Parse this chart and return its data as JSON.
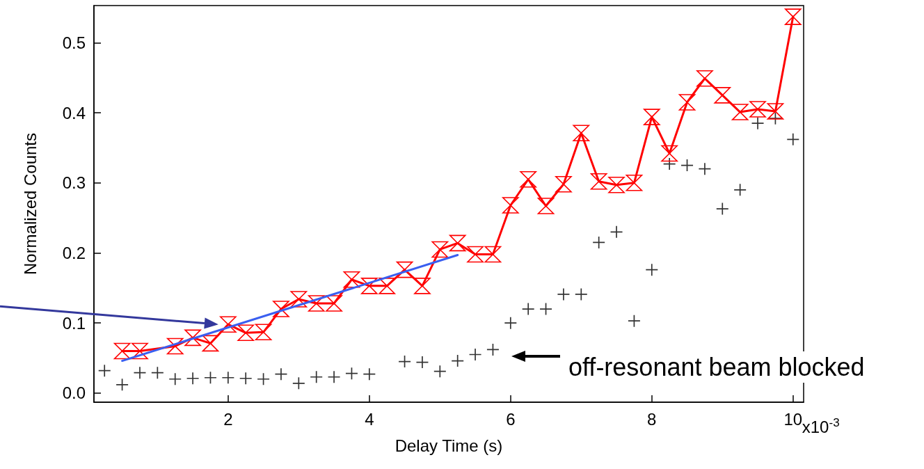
{
  "chart_data": {
    "type": "line",
    "xlabel": "Delay Time (s)",
    "ylabel": "Normalized Counts",
    "xlim": [
      0.1,
      10.15
    ],
    "ylim": [
      -0.013,
      0.553
    ],
    "xticks": [
      2,
      4,
      6,
      8,
      10
    ],
    "yticks": [
      {
        "value": 0,
        "label": "0.0"
      },
      {
        "value": 0.1,
        "label": "0.1"
      },
      {
        "value": 0.2,
        "label": "0.2"
      },
      {
        "value": 0.3,
        "label": "0.3"
      },
      {
        "value": 0.4,
        "label": "0.4"
      },
      {
        "value": 0.5,
        "label": "0.5"
      }
    ],
    "grid": false,
    "annotations": [
      "off-resonant beam blocked",
      "x10$^{-3}$"
    ],
    "series": [
      {
        "type": "scatter",
        "marker": "cross",
        "color": "#000000",
        "x": [
          0.25,
          0.5,
          0.75,
          1.0,
          1.25,
          1.5,
          1.75,
          2.0,
          2.25,
          2.5,
          2.75,
          3.0,
          3.25,
          3.5,
          3.75,
          4.0,
          4.5,
          4.75,
          5.0,
          5.25,
          5.5,
          5.75,
          6.0,
          6.25,
          6.5,
          6.75,
          7.0,
          7.25,
          7.5,
          7.75,
          8.0,
          8.25,
          8.5,
          8.75,
          9.0,
          9.25,
          9.5,
          9.75,
          10.0
        ],
        "values": [
          0.032,
          0.012,
          0.029,
          0.029,
          0.02,
          0.021,
          0.022,
          0.022,
          0.021,
          0.02,
          0.027,
          0.014,
          0.023,
          0.023,
          0.028,
          0.027,
          0.045,
          0.044,
          0.031,
          0.046,
          0.055,
          0.062,
          0.1,
          0.12,
          0.12,
          0.141,
          0.141,
          0.215,
          0.23,
          0.103,
          0.176,
          0.327,
          0.325,
          0.32,
          0.263,
          0.29,
          0.385,
          0.392,
          0.362
        ]
      },
      {
        "type": "line",
        "marker": "triangle",
        "color": "#ff0000",
        "x": [
          0.5,
          0.75,
          1.25,
          1.5,
          1.75,
          2.0,
          2.25,
          2.5,
          2.75,
          3.0,
          3.25,
          3.5,
          3.75,
          4.0,
          4.25,
          4.5,
          4.75,
          5.0,
          5.25,
          5.5,
          5.75,
          6.0,
          6.25,
          6.5,
          6.75,
          7.0,
          7.25,
          7.5,
          7.75,
          8.0,
          8.25,
          8.5,
          8.75,
          9.0,
          9.25,
          9.5,
          9.75,
          10.0
        ],
        "values": [
          0.06,
          0.06,
          0.067,
          0.079,
          0.071,
          0.098,
          0.086,
          0.087,
          0.12,
          0.134,
          0.128,
          0.128,
          0.162,
          0.153,
          0.153,
          0.176,
          0.153,
          0.205,
          0.214,
          0.198,
          0.198,
          0.268,
          0.305,
          0.267,
          0.298,
          0.371,
          0.302,
          0.297,
          0.3,
          0.394,
          0.342,
          0.415,
          0.449,
          0.425,
          0.401,
          0.405,
          0.402,
          0.537
        ]
      },
      {
        "type": "line",
        "marker": "none",
        "color": "#3a5ff0",
        "x": [
          0.5,
          5.25
        ],
        "values": [
          0.046,
          0.197
        ]
      }
    ]
  }
}
